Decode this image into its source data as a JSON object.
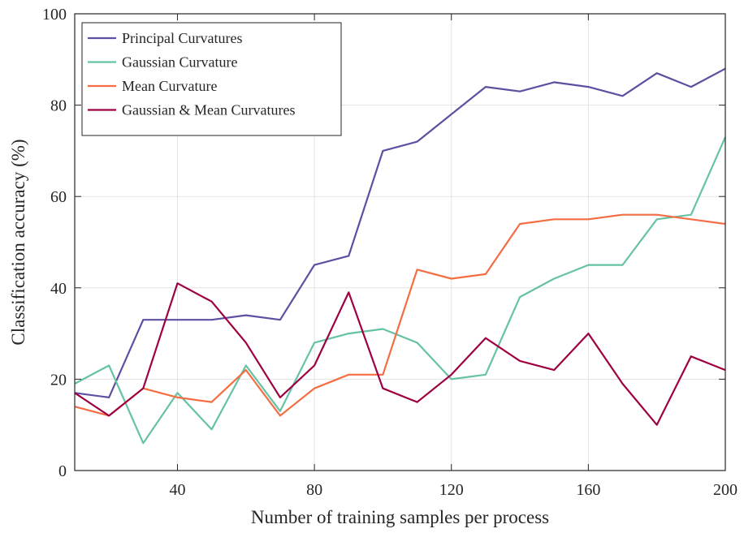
{
  "chart_data": {
    "type": "line",
    "title": "",
    "xlabel": "Number of training samples per process",
    "ylabel": "Classification accuracy (%)",
    "xlim": [
      10,
      200
    ],
    "ylim": [
      0,
      100
    ],
    "xticks": [
      40,
      80,
      120,
      160,
      200
    ],
    "yticks": [
      0,
      20,
      40,
      60,
      80,
      100
    ],
    "grid": true,
    "legend_position": "top-left",
    "x": [
      10,
      20,
      30,
      40,
      50,
      60,
      70,
      80,
      90,
      100,
      110,
      120,
      130,
      140,
      150,
      160,
      170,
      180,
      190,
      200
    ],
    "series": [
      {
        "name": "Principal Curvatures",
        "color": "#5e4fa2",
        "values": [
          17,
          16,
          33,
          33,
          33,
          34,
          33,
          45,
          47,
          70,
          72,
          78,
          84,
          83,
          85,
          84,
          82,
          87,
          84,
          88
        ]
      },
      {
        "name": "Gaussian Curvature",
        "color": "#66c2a5",
        "values": [
          19,
          23,
          6,
          17,
          9,
          23,
          13,
          28,
          30,
          31,
          28,
          20,
          21,
          38,
          42,
          45,
          45,
          55,
          56,
          73
        ]
      },
      {
        "name": "Mean Curvature",
        "color": "#f46d43",
        "values": [
          14,
          12,
          18,
          16,
          15,
          22,
          12,
          18,
          21,
          21,
          44,
          42,
          43,
          54,
          55,
          55,
          56,
          56,
          55,
          54
        ]
      },
      {
        "name": "Gaussian & Mean Curvatures",
        "color": "#9e0142",
        "values": [
          17,
          12,
          18,
          41,
          37,
          28,
          16,
          23,
          39,
          18,
          15,
          21,
          29,
          24,
          22,
          30,
          19,
          10,
          25,
          22
        ]
      }
    ]
  }
}
